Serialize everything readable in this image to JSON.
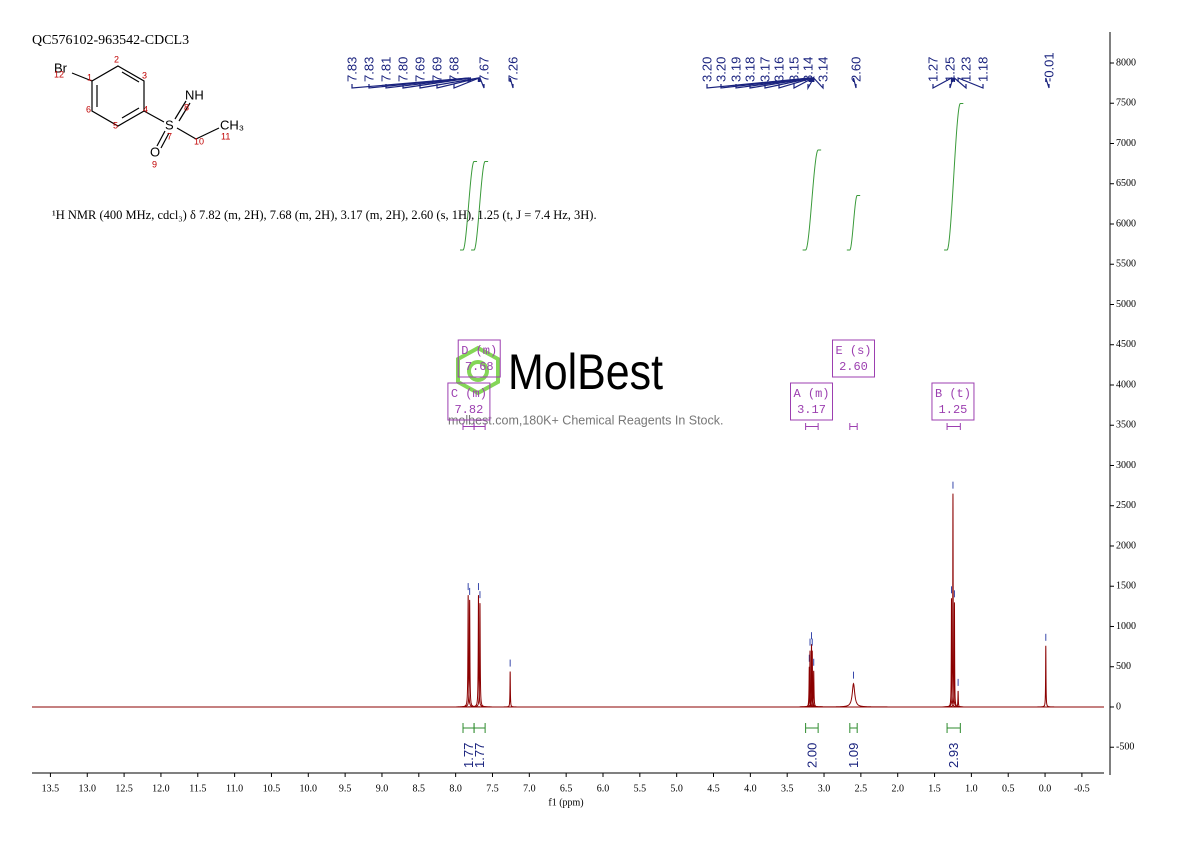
{
  "chart_data": {
    "type": "nmr",
    "title": "QC576102-963542-CDCL3",
    "x_label": "f1 (ppm)",
    "description": "¹H NMR (400 MHz, cdcl₃) δ 7.82 (m, 2H), 7.68 (m, 2H), 3.17 (m, 2H), 2.60 (s, 1H), 1.25 (t, J = 7.4 Hz, 3H).",
    "xlim": [
      13.75,
      -0.8
    ],
    "ylim": [
      -845,
      8385
    ],
    "xticks": [
      13.5,
      {
        "value": 13,
        "label": "13.0"
      },
      12.5,
      {
        "value": 12,
        "label": "12.0"
      },
      11.5,
      {
        "value": 11,
        "label": "11.0"
      },
      10.5,
      {
        "value": 10,
        "label": "10.0"
      },
      9.5,
      {
        "value": 9,
        "label": "9.0"
      },
      8.5,
      {
        "value": 8,
        "label": "8.0"
      },
      7.5,
      {
        "value": 7,
        "label": "7.0"
      },
      6.5,
      {
        "value": 6,
        "label": "6.0"
      },
      5.5,
      {
        "value": 5,
        "label": "5.0"
      },
      4.5,
      {
        "value": 4,
        "label": "4.0"
      },
      3.5,
      {
        "value": 3,
        "label": "3.0"
      },
      2.5,
      {
        "value": 2,
        "label": "2.0"
      },
      1.5,
      {
        "value": 1,
        "label": "1.0"
      },
      0.5,
      {
        "value": 0,
        "label": "0.0"
      },
      -0.5
    ],
    "yticks": [
      -500,
      0,
      500,
      1000,
      1500,
      2000,
      2500,
      3000,
      3500,
      4000,
      4500,
      5000,
      5500,
      6000,
      6500,
      7000,
      7500,
      8000
    ],
    "color": "#8b0000",
    "peaks": [
      {
        "ppm": 7.83,
        "height": 1390,
        "width": 0.004
      },
      {
        "ppm": 7.81,
        "height": 1330,
        "width": 0.004
      },
      {
        "ppm": 7.69,
        "height": 1390,
        "width": 0.004
      },
      {
        "ppm": 7.67,
        "height": 1290,
        "width": 0.004
      },
      {
        "ppm": 7.26,
        "height": 440,
        "width": 0.003
      },
      {
        "ppm": 3.2,
        "height": 500,
        "width": 0.004
      },
      {
        "ppm": 3.19,
        "height": 700,
        "width": 0.004
      },
      {
        "ppm": 3.17,
        "height": 780,
        "width": 0.004
      },
      {
        "ppm": 3.16,
        "height": 700,
        "width": 0.004
      },
      {
        "ppm": 3.14,
        "height": 450,
        "width": 0.004
      },
      {
        "ppm": 2.6,
        "height": 290,
        "width": 0.02
      },
      {
        "ppm": 1.27,
        "height": 1350,
        "width": 0.003
      },
      {
        "ppm": 1.25,
        "height": 2650,
        "width": 0.003
      },
      {
        "ppm": 1.23,
        "height": 1300,
        "width": 0.003
      },
      {
        "ppm": 1.18,
        "height": 200,
        "width": 0.003
      },
      {
        "ppm": -0.01,
        "height": 760,
        "width": 0.003
      }
    ],
    "peak_labels": [
      7.83,
      7.83,
      7.81,
      {
        "value": 7.8,
        "label": "7.80"
      },
      7.69,
      7.69,
      7.68,
      7.67,
      7.26,
      {
        "value": 3.2,
        "label": "3.20"
      },
      {
        "value": 3.2,
        "label": "3.20"
      },
      3.19,
      3.18,
      3.17,
      3.16,
      3.15,
      3.14,
      3.14,
      {
        "value": 2.6,
        "label": "2.60"
      },
      1.27,
      1.25,
      1.23,
      1.18,
      -0.01
    ],
    "integrals": [
      {
        "from": 7.9,
        "to": 7.75,
        "value": 1.77
      },
      {
        "from": 7.75,
        "to": 7.6,
        "value": 1.77
      },
      {
        "from": 3.25,
        "to": 3.08,
        "value": {
          "value": 2,
          "label": "2.00"
        }
      },
      {
        "from": 2.65,
        "to": 2.55,
        "value": 1.09
      },
      {
        "from": 1.33,
        "to": 1.15,
        "value": 2.93
      }
    ],
    "multiplets": [
      {
        "label": "C (m)",
        "shift": 7.82
      },
      {
        "label": "D (m)",
        "shift": 7.68
      },
      {
        "label": "A (m)",
        "shift": 3.17
      },
      {
        "label": "E (s)",
        "shift": {
          "value": 2.6,
          "label": "2.60"
        }
      },
      {
        "label": "B (t)",
        "shift": 1.25
      }
    ]
  },
  "structure": {
    "atoms": [
      "Br",
      "NH",
      "S",
      "O",
      "CH₃"
    ],
    "numbers": [
      "1",
      "2",
      "3",
      "4",
      "5",
      "6",
      "7",
      "8",
      "9",
      "10",
      "11",
      "12"
    ]
  },
  "watermark": {
    "brand": "MolBest",
    "tagline": "molbest.com,180K+ Chemical Reagents In Stock."
  }
}
